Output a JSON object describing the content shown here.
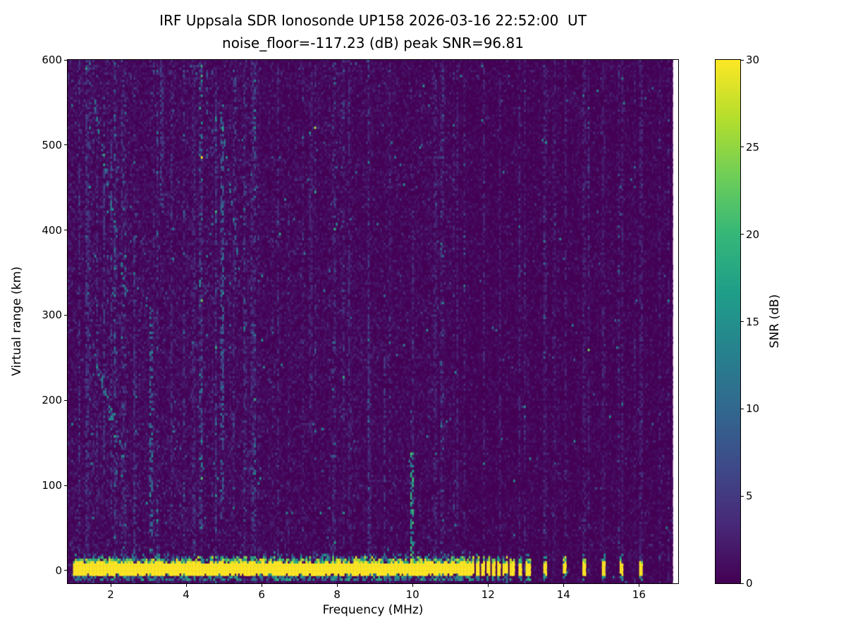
{
  "chart_data": {
    "type": "heatmap",
    "title": "IRF Uppsala SDR Ionosonde UP158 2026-03-16 22:52:00  UT",
    "subtitle": "noise_floor=-117.23 (dB) peak SNR=96.81",
    "xlabel": "Frequency (MHz)",
    "ylabel": "Virtual range (km)",
    "colorbar_label": "SNR (dB)",
    "colormap": "viridis",
    "station": "UP158",
    "timestamp_ut": "2026-03-16 22:52:00",
    "noise_floor_db": -117.23,
    "peak_snr_db": 96.81,
    "x_axis": {
      "range_mhz": [
        0.86,
        17.04
      ],
      "ticks": [
        2,
        4,
        6,
        8,
        10,
        12,
        14,
        16
      ],
      "data_max_mhz": 16.9
    },
    "y_axis": {
      "range_km": [
        -14.9,
        600
      ],
      "ticks": [
        0,
        100,
        200,
        300,
        400,
        500,
        600
      ]
    },
    "colorbar": {
      "range_db": [
        0,
        30
      ],
      "ticks": [
        0,
        5,
        10,
        15,
        20,
        25,
        30
      ]
    },
    "features": {
      "ground_pulse_band": {
        "freq_mhz": [
          1.0,
          11.65
        ],
        "range_km": [
          -5,
          8
        ],
        "snr_db": 30,
        "fringe_km": [
          8,
          14
        ],
        "underline_km": [
          -11.5,
          -7
        ]
      },
      "hf_pulses_mhz": [
        11.72,
        11.86,
        12.0,
        12.14,
        12.3,
        12.46,
        12.64,
        12.84,
        13.06,
        13.52,
        14.04,
        14.55,
        15.05,
        15.55,
        16.05
      ],
      "interference_spike": {
        "freq_mhz": 10.0,
        "range_km": [
          8,
          138
        ],
        "peak_snr_db": 16
      },
      "rfi_streaks": [
        {
          "f": 1.18,
          "w": 0.03,
          "km": [
            0,
            600
          ],
          "strength": 0.8
        },
        {
          "f": 1.38,
          "w": 0.03,
          "km": [
            0,
            600
          ],
          "strength": 1.1
        },
        {
          "f": 1.62,
          "w": 0.03,
          "km": [
            60,
            560
          ],
          "strength": 0.9
        },
        {
          "f": 1.82,
          "w": 0.04,
          "km": [
            100,
            560
          ],
          "strength": 1.2
        },
        {
          "f": 2.02,
          "w": 0.03,
          "km": [
            60,
            520
          ],
          "strength": 1.0
        },
        {
          "f": 2.3,
          "w": 0.03,
          "km": [
            0,
            600
          ],
          "strength": 0.8
        },
        {
          "f": 2.62,
          "w": 0.03,
          "km": [
            0,
            400
          ],
          "strength": 0.9
        },
        {
          "f": 3.05,
          "w": 0.045,
          "km": [
            0,
            310
          ],
          "strength": 2.4
        },
        {
          "f": 3.35,
          "w": 0.03,
          "km": [
            420,
            600
          ],
          "strength": 1.3
        },
        {
          "f": 3.6,
          "w": 0.03,
          "km": [
            0,
            600
          ],
          "strength": 0.7
        },
        {
          "f": 4.2,
          "w": 0.03,
          "km": [
            0,
            600
          ],
          "strength": 0.7
        },
        {
          "f": 4.55,
          "w": 0.03,
          "km": [
            480,
            600
          ],
          "strength": 1.4
        },
        {
          "f": 4.95,
          "w": 0.04,
          "km": [
            60,
            540
          ],
          "strength": 2.0
        },
        {
          "f": 5.3,
          "w": 0.035,
          "km": [
            340,
            580
          ],
          "strength": 1.4
        },
        {
          "f": 5.75,
          "w": 0.03,
          "km": [
            0,
            600
          ],
          "strength": 0.7
        },
        {
          "f": 6.45,
          "w": 0.03,
          "km": [
            0,
            600
          ],
          "strength": 0.8
        },
        {
          "f": 7.3,
          "w": 0.03,
          "km": [
            150,
            600
          ],
          "strength": 0.7
        },
        {
          "f": 8.3,
          "w": 0.03,
          "km": [
            0,
            600
          ],
          "strength": 0.8
        },
        {
          "f": 8.85,
          "w": 0.03,
          "km": [
            0,
            300
          ],
          "strength": 0.7
        },
        {
          "f": 9.25,
          "w": 0.035,
          "km": [
            0,
            260
          ],
          "strength": 1.1
        },
        {
          "f": 10.0,
          "w": 0.05,
          "km": [
            8,
            138
          ],
          "strength": 4.2
        },
        {
          "f": 10.0,
          "w": 0.035,
          "km": [
            138,
            430
          ],
          "strength": 0.9
        },
        {
          "f": 10.6,
          "w": 0.03,
          "km": [
            0,
            600
          ],
          "strength": 0.7
        },
        {
          "f": 11.2,
          "w": 0.03,
          "km": [
            0,
            600
          ],
          "strength": 0.7
        },
        {
          "f": 11.9,
          "w": 0.03,
          "km": [
            0,
            600
          ],
          "strength": 0.7
        },
        {
          "f": 12.3,
          "w": 0.03,
          "km": [
            0,
            600
          ],
          "strength": 0.6
        },
        {
          "f": 12.84,
          "w": 0.03,
          "km": [
            0,
            600
          ],
          "strength": 0.7
        },
        {
          "f": 13.52,
          "w": 0.03,
          "km": [
            0,
            600
          ],
          "strength": 0.6
        },
        {
          "f": 14.04,
          "w": 0.03,
          "km": [
            0,
            600
          ],
          "strength": 0.7
        },
        {
          "f": 14.55,
          "w": 0.03,
          "km": [
            0,
            600
          ],
          "strength": 0.6
        },
        {
          "f": 15.05,
          "w": 0.03,
          "km": [
            0,
            600
          ],
          "strength": 0.6
        },
        {
          "f": 15.55,
          "w": 0.03,
          "km": [
            0,
            600
          ],
          "strength": 0.6
        },
        {
          "f": 16.05,
          "w": 0.03,
          "km": [
            0,
            600
          ],
          "strength": 0.7
        }
      ],
      "echo_trails": [
        {
          "f": [
            2.3,
            1.5
          ],
          "km": [
            140,
            265
          ]
        },
        {
          "f": [
            2.42,
            1.58
          ],
          "km": [
            320,
            548
          ]
        },
        {
          "f": [
            5.4,
            4.95
          ],
          "km": [
            355,
            530
          ]
        }
      ]
    }
  }
}
